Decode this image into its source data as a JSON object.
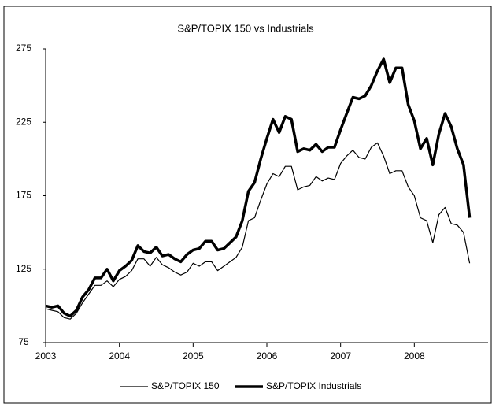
{
  "chart_data": {
    "type": "line",
    "title": "S&P/TOPIX 150 vs Industrials",
    "x": [
      2003,
      2003.083,
      2003.167,
      2003.25,
      2003.333,
      2003.417,
      2003.5,
      2003.583,
      2003.667,
      2003.75,
      2003.833,
      2003.917,
      2004,
      2004.083,
      2004.167,
      2004.25,
      2004.333,
      2004.417,
      2004.5,
      2004.583,
      2004.667,
      2004.75,
      2004.833,
      2004.917,
      2005,
      2005.083,
      2005.167,
      2005.25,
      2005.333,
      2005.417,
      2005.5,
      2005.583,
      2005.667,
      2005.75,
      2005.833,
      2005.917,
      2006,
      2006.083,
      2006.167,
      2006.25,
      2006.333,
      2006.417,
      2006.5,
      2006.583,
      2006.667,
      2006.75,
      2006.833,
      2006.917,
      2007,
      2007.083,
      2007.167,
      2007.25,
      2007.333,
      2007.417,
      2007.5,
      2007.583,
      2007.667,
      2007.75,
      2007.833,
      2007.917,
      2008,
      2008.083,
      2008.167,
      2008.25,
      2008.333,
      2008.417,
      2008.5,
      2008.583,
      2008.667,
      2008.75
    ],
    "series": [
      {
        "name": "S&P/TOPIX 150",
        "color": "#000000",
        "width": 1.2,
        "values": [
          98,
          97,
          96,
          92,
          91,
          95,
          102,
          108,
          114,
          114,
          117,
          113,
          118,
          120,
          124,
          132,
          132,
          127,
          133,
          128,
          126,
          123,
          121,
          123,
          129,
          127,
          130,
          130,
          124,
          127,
          130,
          133,
          140,
          158,
          160,
          172,
          183,
          190,
          188,
          195,
          195,
          179,
          181,
          182,
          188,
          185,
          187,
          186,
          197,
          202,
          206,
          201,
          200,
          208,
          211,
          202,
          190,
          192,
          192,
          181,
          175,
          160,
          158,
          143,
          162,
          167,
          156,
          155,
          150,
          129
        ]
      },
      {
        "name": "S&P/TOPIX Industrials",
        "color": "#000000",
        "width": 3.5,
        "values": [
          100,
          99,
          100,
          95,
          93,
          97,
          106,
          111,
          119,
          119,
          125,
          117,
          124,
          127,
          131,
          141,
          137,
          136,
          140,
          134,
          135,
          132,
          130,
          135,
          138,
          139,
          144,
          144,
          138,
          139,
          143,
          147,
          158,
          178,
          184,
          200,
          214,
          227,
          218,
          229,
          227,
          205,
          207,
          206,
          210,
          205,
          208,
          208,
          220,
          231,
          242,
          241,
          243,
          250,
          260,
          268,
          252,
          262,
          262,
          237,
          226,
          207,
          214,
          196,
          217,
          231,
          222,
          207,
          196,
          160
        ]
      }
    ],
    "xlim": [
      2003,
      2009
    ],
    "xticks": [
      2003,
      2004,
      2005,
      2006,
      2007,
      2008
    ],
    "ylim": [
      75,
      275
    ],
    "yticks": [
      75,
      125,
      175,
      225,
      275
    ],
    "legend": "bottom"
  }
}
